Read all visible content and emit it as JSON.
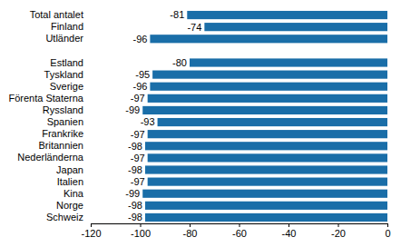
{
  "chart_data": {
    "type": "bar",
    "orientation": "horizontal",
    "categories": [
      "Total antalet",
      "Finland",
      "Utländer",
      null,
      "Estland",
      "Tyskland",
      "Sverige",
      "Förenta Staterna",
      "Ryssland",
      "Spanien",
      "Frankrike",
      "Britannien",
      "Nederländerna",
      "Japan",
      "Italien",
      "Kina",
      "Norge",
      "Schweiz"
    ],
    "values": [
      -81,
      -74,
      -96,
      null,
      -80,
      -95,
      -96,
      -97,
      -99,
      -93,
      -97,
      -98,
      -97,
      -98,
      -97,
      -99,
      -98,
      -98
    ],
    "color": "#1a6ea8",
    "xlim": [
      -120,
      0
    ],
    "xticks": [
      -120,
      -100,
      -80,
      -60,
      -40,
      -20,
      0
    ],
    "grid": false,
    "data_labels": true
  }
}
